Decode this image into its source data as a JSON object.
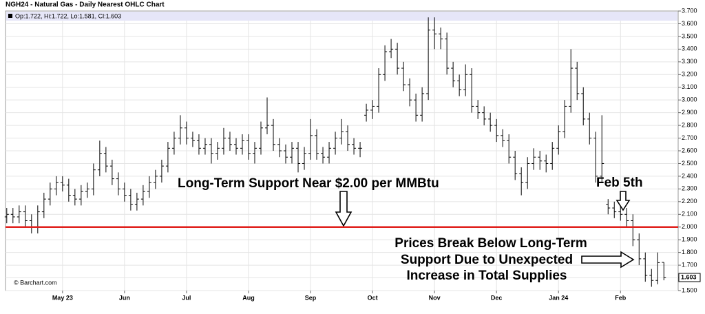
{
  "chart_data": {
    "type": "ohlc",
    "title": "NGH24 - Natural Gas - Daily Nearest OHLC Chart",
    "subtitle": "Op:1.722, Hi:1.722, Lo:1.581, Cl:1.603",
    "source": "© Barchart.com",
    "color": "#000000",
    "open": [
      2.08,
      2.1,
      2.08,
      2.12,
      2.05,
      2.0,
      2.12,
      2.22,
      2.3,
      2.35,
      2.33,
      2.25,
      2.22,
      2.28,
      2.3,
      2.45,
      2.58,
      2.48,
      2.38,
      2.3,
      2.25,
      2.18,
      2.22,
      2.28,
      2.35,
      2.4,
      2.48,
      2.62,
      2.7,
      2.78,
      2.7,
      2.68,
      2.62,
      2.65,
      2.58,
      2.62,
      2.7,
      2.65,
      2.62,
      2.68,
      2.58,
      2.62,
      2.78,
      2.8,
      2.65,
      2.6,
      2.55,
      2.62,
      2.5,
      2.58,
      2.72,
      2.58,
      2.55,
      2.62,
      2.7,
      2.75,
      2.65,
      2.62,
      2.88,
      2.92,
      2.95,
      3.2,
      3.38,
      3.4,
      3.25,
      3.12,
      3.0,
      2.88,
      3.05,
      3.55,
      3.52,
      3.48,
      3.25,
      3.15,
      3.08,
      3.2,
      2.95,
      2.9,
      2.85,
      2.8,
      2.72,
      2.68,
      2.55,
      2.42,
      2.35,
      2.5,
      2.55,
      2.52,
      2.5,
      2.62,
      2.75,
      2.95,
      3.25,
      3.05,
      2.85,
      2.7,
      2.4,
      2.18,
      2.15,
      2.12,
      2.1,
      2.05,
      1.9,
      1.75,
      1.62,
      1.58,
      1.722
    ],
    "high": [
      2.15,
      2.15,
      2.17,
      2.17,
      2.1,
      2.17,
      2.27,
      2.35,
      2.4,
      2.4,
      2.38,
      2.3,
      2.33,
      2.35,
      2.5,
      2.68,
      2.63,
      2.53,
      2.43,
      2.35,
      2.3,
      2.27,
      2.33,
      2.4,
      2.45,
      2.53,
      2.67,
      2.75,
      2.88,
      2.83,
      2.75,
      2.73,
      2.7,
      2.7,
      2.67,
      2.78,
      2.75,
      2.7,
      2.73,
      2.73,
      2.67,
      2.83,
      3.02,
      2.85,
      2.7,
      2.65,
      2.67,
      2.67,
      2.63,
      2.85,
      2.77,
      2.63,
      2.67,
      2.75,
      2.85,
      2.8,
      2.7,
      2.67,
      2.97,
      3.0,
      3.25,
      3.43,
      3.48,
      3.45,
      3.3,
      3.17,
      3.05,
      3.1,
      3.65,
      3.65,
      3.57,
      3.53,
      3.3,
      3.2,
      3.28,
      3.25,
      3.0,
      2.95,
      2.9,
      2.85,
      2.77,
      2.73,
      2.6,
      2.47,
      2.55,
      2.62,
      2.6,
      2.57,
      2.67,
      2.8,
      3.0,
      3.4,
      3.3,
      3.1,
      2.9,
      2.75,
      2.88,
      2.22,
      2.2,
      2.17,
      2.15,
      2.1,
      1.95,
      1.8,
      1.67,
      1.8,
      1.722
    ],
    "low": [
      2.03,
      2.03,
      2.03,
      2.0,
      1.95,
      1.95,
      2.07,
      2.17,
      2.25,
      2.28,
      2.2,
      2.17,
      2.17,
      2.23,
      2.25,
      2.4,
      2.43,
      2.33,
      2.25,
      2.2,
      2.13,
      2.13,
      2.17,
      2.23,
      2.3,
      2.35,
      2.43,
      2.57,
      2.65,
      2.65,
      2.63,
      2.57,
      2.57,
      2.5,
      2.53,
      2.57,
      2.6,
      2.57,
      2.57,
      2.53,
      2.5,
      2.57,
      2.73,
      2.6,
      2.55,
      2.5,
      2.5,
      2.43,
      2.45,
      2.53,
      2.53,
      2.5,
      2.5,
      2.57,
      2.65,
      2.6,
      2.57,
      2.55,
      2.83,
      2.85,
      2.9,
      3.15,
      3.33,
      3.2,
      3.07,
      2.95,
      2.83,
      2.83,
      3.0,
      3.4,
      3.4,
      3.2,
      3.1,
      3.03,
      3.03,
      2.9,
      2.85,
      2.8,
      2.75,
      2.67,
      2.63,
      2.5,
      2.37,
      2.25,
      2.3,
      2.45,
      2.45,
      2.43,
      2.45,
      2.57,
      2.7,
      2.9,
      3.0,
      2.8,
      2.65,
      2.35,
      2.35,
      2.1,
      2.07,
      2.05,
      2.0,
      1.85,
      1.7,
      1.57,
      1.53,
      1.55,
      1.581
    ],
    "close": [
      2.1,
      2.08,
      2.12,
      2.05,
      2.0,
      2.12,
      2.22,
      2.3,
      2.35,
      2.33,
      2.25,
      2.22,
      2.28,
      2.3,
      2.45,
      2.58,
      2.48,
      2.38,
      2.3,
      2.25,
      2.18,
      2.22,
      2.28,
      2.35,
      2.4,
      2.48,
      2.62,
      2.7,
      2.78,
      2.7,
      2.68,
      2.62,
      2.65,
      2.58,
      2.62,
      2.7,
      2.65,
      2.62,
      2.68,
      2.58,
      2.62,
      2.78,
      2.8,
      2.65,
      2.6,
      2.55,
      2.62,
      2.5,
      2.58,
      2.72,
      2.58,
      2.55,
      2.62,
      2.7,
      2.75,
      2.65,
      2.62,
      2.62,
      2.92,
      2.95,
      3.2,
      3.38,
      3.4,
      3.25,
      3.12,
      3.0,
      2.88,
      3.05,
      3.55,
      3.52,
      3.48,
      3.25,
      3.15,
      3.08,
      3.2,
      2.95,
      2.9,
      2.85,
      2.8,
      2.72,
      2.68,
      2.55,
      2.42,
      2.35,
      2.5,
      2.55,
      2.52,
      2.5,
      2.62,
      2.75,
      2.95,
      3.25,
      3.05,
      2.85,
      2.7,
      2.4,
      2.5,
      2.15,
      2.12,
      2.1,
      2.05,
      1.9,
      1.75,
      1.62,
      1.58,
      1.72,
      1.603
    ],
    "xlim": [
      -0.2,
      108.3
    ],
    "xticks": [
      {
        "value": 9,
        "label": "May 23"
      },
      {
        "value": 19,
        "label": "Jun"
      },
      {
        "value": 29,
        "label": "Jul"
      },
      {
        "value": 39,
        "label": "Aug"
      },
      {
        "value": 49,
        "label": "Sep"
      },
      {
        "value": 59,
        "label": "Oct"
      },
      {
        "value": 69,
        "label": "Nov"
      },
      {
        "value": 79,
        "label": "Dec"
      },
      {
        "value": 89,
        "label": "Jan 24"
      },
      {
        "value": 99,
        "label": "Feb"
      }
    ],
    "ylim": [
      1.5,
      3.7
    ],
    "yticks": [
      {
        "value": 1.5,
        "label": "1.500"
      },
      {
        "value": 1.6,
        "label": "1.600"
      },
      {
        "value": 1.7,
        "label": "1.700"
      },
      {
        "value": 1.8,
        "label": "1.800"
      },
      {
        "value": 1.9,
        "label": "1.900"
      },
      {
        "value": 2.0,
        "label": "2.000"
      },
      {
        "value": 2.1,
        "label": "2.100"
      },
      {
        "value": 2.2,
        "label": "2.200"
      },
      {
        "value": 2.3,
        "label": "2.300"
      },
      {
        "value": 2.4,
        "label": "2.400"
      },
      {
        "value": 2.5,
        "label": "2.500"
      },
      {
        "value": 2.6,
        "label": "2.600"
      },
      {
        "value": 2.7,
        "label": "2.700"
      },
      {
        "value": 2.8,
        "label": "2.800"
      },
      {
        "value": 2.9,
        "label": "2.900"
      },
      {
        "value": 3.0,
        "label": "3.000"
      },
      {
        "value": 3.1,
        "label": "3.100"
      },
      {
        "value": 3.2,
        "label": "3.200"
      },
      {
        "value": 3.3,
        "label": "3.300"
      },
      {
        "value": 3.4,
        "label": "3.400"
      },
      {
        "value": 3.5,
        "label": "3.500"
      },
      {
        "value": 3.6,
        "label": "3.600"
      },
      {
        "value": 3.7,
        "label": "3.700"
      }
    ],
    "grid": true,
    "hline": {
      "value": 2.0,
      "color": "#e0201c"
    },
    "annotations": [
      "Long-Term Support Near $2.00 per MMBtu",
      "Feb 5th",
      "Prices Break Below Long-Term",
      "Support Due to Unexpected",
      "Increase in Total Supplies"
    ]
  }
}
